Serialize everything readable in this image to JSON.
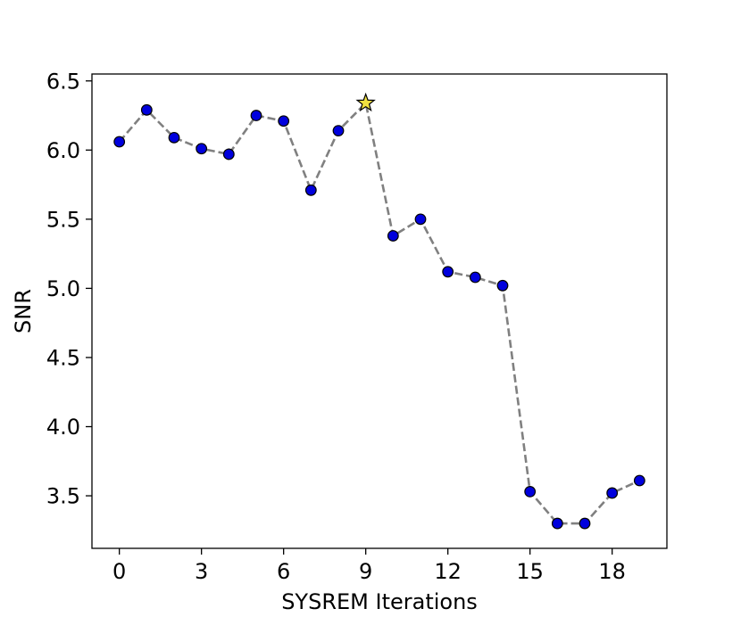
{
  "chart_data": {
    "type": "line",
    "title": "",
    "xlabel": "SYSREM Iterations",
    "ylabel": "SNR",
    "xlim": [
      -1.0,
      20.0
    ],
    "ylim": [
      3.12,
      6.55
    ],
    "x_ticks": [
      0,
      3,
      6,
      9,
      12,
      15,
      18
    ],
    "x_tick_labels": [
      "0",
      "3",
      "6",
      "9",
      "12",
      "15",
      "18"
    ],
    "y_ticks": [
      3.5,
      4.0,
      4.5,
      5.0,
      5.5,
      6.0,
      6.5
    ],
    "y_tick_labels": [
      "3.5",
      "4.0",
      "4.5",
      "5.0",
      "5.5",
      "6.0",
      "6.5"
    ],
    "grid": false,
    "legend": "none",
    "series": [
      {
        "x": [
          0,
          1,
          2,
          3,
          4,
          5,
          6,
          7,
          8,
          9,
          10,
          11,
          12,
          13,
          14,
          15,
          16,
          17,
          18,
          19
        ],
        "values": [
          6.06,
          6.29,
          6.09,
          6.01,
          5.97,
          6.25,
          6.21,
          5.71,
          6.14,
          6.34,
          5.38,
          5.5,
          5.12,
          5.08,
          5.02,
          3.53,
          3.3,
          3.3,
          3.52,
          3.61
        ],
        "line_style": "dashed",
        "line_color": "#808080",
        "marker": "circle",
        "marker_color": "#0000dd",
        "marker_edge_color": "#000000"
      }
    ],
    "highlight": {
      "x": 9,
      "value": 6.34,
      "marker": "star",
      "color": "#f0e040"
    }
  }
}
